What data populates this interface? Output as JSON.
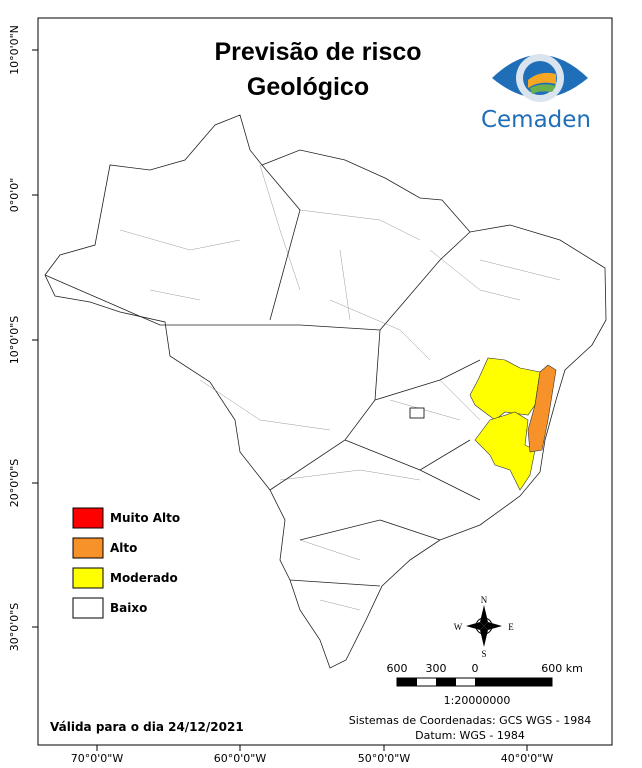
{
  "title": [
    "Previsão de risco",
    "Geológico"
  ],
  "logo": "Cemaden",
  "latitude_labels": [
    "10°0'0\"N",
    "0°0'0\"",
    "10°0'0\"S",
    "20°0'0\"S",
    "30°0'0\"S"
  ],
  "longitude_labels": [
    "70°0'0\"W",
    "60°0'0\"W",
    "50°0'0\"W",
    "40°0'0\"W"
  ],
  "legend": [
    {
      "label": "Muito Alto",
      "color": "#ff0000"
    },
    {
      "label": "Alto",
      "color": "#f7922a"
    },
    {
      "label": "Moderado",
      "color": "#ffff00"
    },
    {
      "label": "Baixo",
      "color": "#ffffff"
    }
  ],
  "compass": {
    "north": "N",
    "south": "S",
    "east": "E",
    "west": "W"
  },
  "scale_bar": {
    "labels": [
      "600",
      "300",
      "0",
      "600 km"
    ],
    "ratio": "1:20000000"
  },
  "validity": "Válida para o dia 24/12/2021",
  "coordinates": [
    "Sistemas de Coordenadas: GCS WGS - 1984",
    "Datum: WGS - 1984"
  ]
}
